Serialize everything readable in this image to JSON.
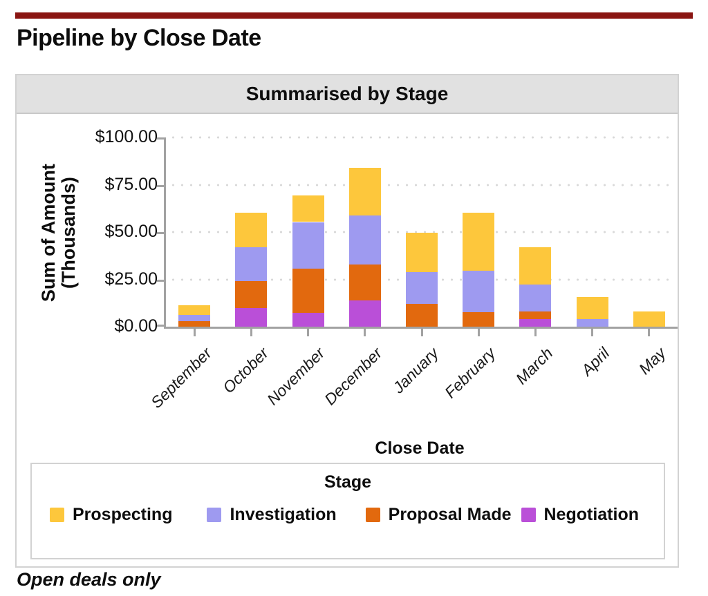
{
  "page": {
    "title": "Pipeline by Close Date",
    "footnote": "Open deals only"
  },
  "chart": {
    "header": "Summarised by Stage",
    "y_axis_title_line1": "Sum of Amount",
    "y_axis_title_line2": "(Thousands)",
    "x_axis_title": "Close Date",
    "legend_title": "Stage"
  },
  "colors": {
    "accent_rule": "#8A1512",
    "axis": "#A2A2A2",
    "gridline_dots": "#D9D9D9",
    "header_band": "#E1E1E1",
    "card_border": "#D2D2D2",
    "prospecting": "#FDC73C",
    "investigation": "#9E9AF0",
    "proposal_made": "#E2690E",
    "negotiation": "#BA4FD8"
  },
  "chart_data": {
    "type": "bar",
    "stacked": true,
    "title": "Summarised by Stage",
    "xlabel": "Close Date",
    "ylabel": "Sum of Amount (Thousands)",
    "ylim": [
      0,
      100
    ],
    "grid": "horizontal-dotted",
    "legend_position": "bottom",
    "y_ticks": [
      {
        "label": "$100.00",
        "value": 100
      },
      {
        "label": "$75.00",
        "value": 75
      },
      {
        "label": "$50.00",
        "value": 50
      },
      {
        "label": "$25.00",
        "value": 25
      },
      {
        "label": "$0.00",
        "value": 0
      }
    ],
    "categories": [
      "September",
      "October",
      "November",
      "December",
      "January",
      "February",
      "March",
      "April",
      "May"
    ],
    "series": [
      {
        "name": "Prospecting",
        "color": "#FDC73C",
        "values": [
          4.9,
          18.3,
          14.0,
          25.0,
          20.6,
          30.6,
          19.4,
          11.6,
          7.9
        ]
      },
      {
        "name": "Investigation",
        "color": "#9E9AF0",
        "values": [
          3.3,
          17.7,
          24.8,
          25.8,
          16.7,
          22.0,
          14.5,
          4.0,
          0
        ]
      },
      {
        "name": "Proposal Made",
        "color": "#E2690E",
        "values": [
          3.0,
          14.5,
          23.2,
          19.0,
          12.2,
          7.5,
          3.7,
          0,
          0
        ]
      },
      {
        "name": "Negotiation",
        "color": "#BA4FD8",
        "values": [
          0,
          9.7,
          7.3,
          14.0,
          0,
          0,
          4.2,
          0,
          0
        ]
      }
    ],
    "category_totals": [
      11.2,
      60.2,
      69.3,
      83.8,
      49.5,
      60.1,
      41.8,
      15.6,
      7.9
    ]
  }
}
